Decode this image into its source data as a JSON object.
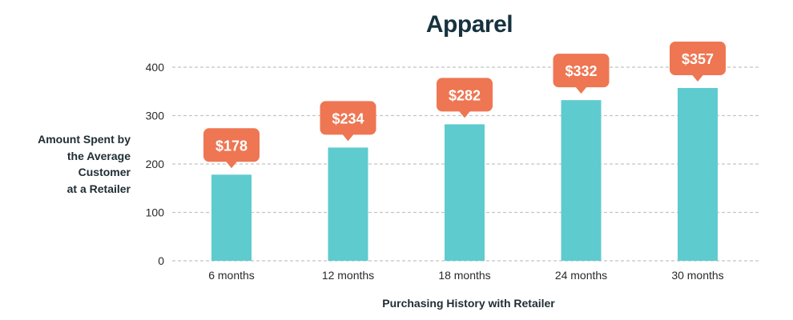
{
  "chart_data": {
    "type": "bar",
    "title": "Apparel",
    "ylabel_lines": [
      "Amount Spent by",
      "the Average",
      "Customer",
      "at a Retailer"
    ],
    "xlabel": "Purchasing History with Retailer",
    "categories": [
      "6 months",
      "12 months",
      "18 months",
      "24 months",
      "30 months"
    ],
    "values": [
      178,
      234,
      282,
      332,
      357
    ],
    "value_labels": [
      "$178",
      "$234",
      "$282",
      "$332",
      "$357"
    ],
    "yticks": [
      0,
      100,
      200,
      300,
      400
    ],
    "ylim": [
      0,
      400
    ],
    "grid": true,
    "colors": {
      "bar": "#5ecbcf",
      "callout": "#ee7653",
      "grid": "#c4c4c4",
      "text": "#2a2a2a"
    }
  }
}
